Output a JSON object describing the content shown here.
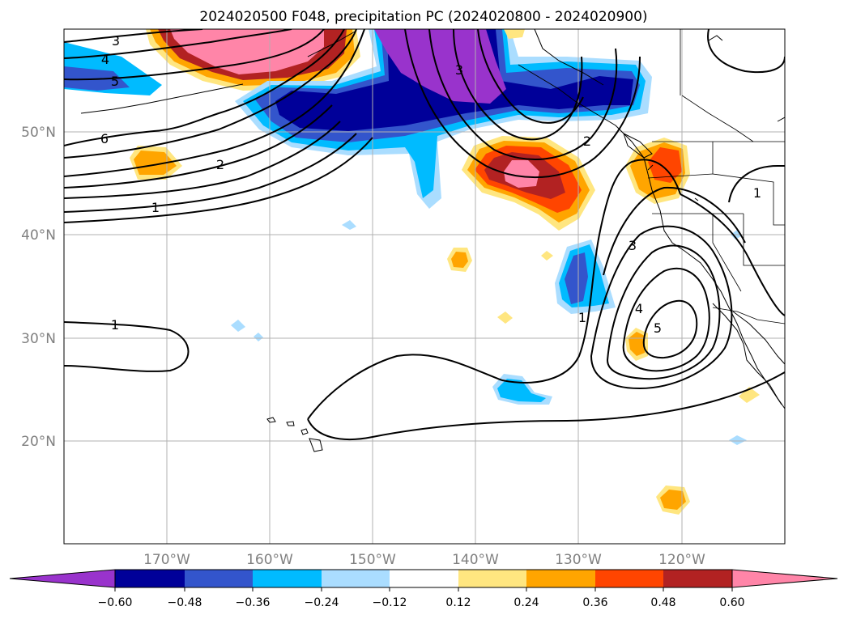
{
  "title": "2024020500 F048, precipitation PC (2024020800 - 2024020900)",
  "map": {
    "lon_range": [
      -180,
      -110
    ],
    "lat_range": [
      10,
      60
    ],
    "lat_labels": [
      "50°N",
      "40°N",
      "30°N",
      "20°N"
    ],
    "lat_values": [
      50,
      40,
      30,
      20
    ],
    "lon_labels": [
      "170°W",
      "160°W",
      "150°W",
      "140°W",
      "130°W",
      "120°W"
    ],
    "lon_values": [
      -170,
      -160,
      -150,
      -140,
      -130,
      -120
    ],
    "contour_labels": [
      "3",
      "4",
      "5",
      "6",
      "2",
      "1",
      "1",
      "3",
      "2",
      "3",
      "4",
      "5",
      "1",
      "1"
    ]
  },
  "colorbar": {
    "colors": [
      "#9933cc",
      "#000099",
      "#3355cc",
      "#00bbff",
      "#aaddff",
      "#ffffff",
      "#ffe680",
      "#ffa500",
      "#ff4500",
      "#b22222",
      "#ff85a8"
    ],
    "ticks": [
      "−0.60",
      "−0.48",
      "−0.36",
      "−0.24",
      "−0.12",
      "0.12",
      "0.24",
      "0.36",
      "0.48",
      "0.60"
    ]
  }
}
